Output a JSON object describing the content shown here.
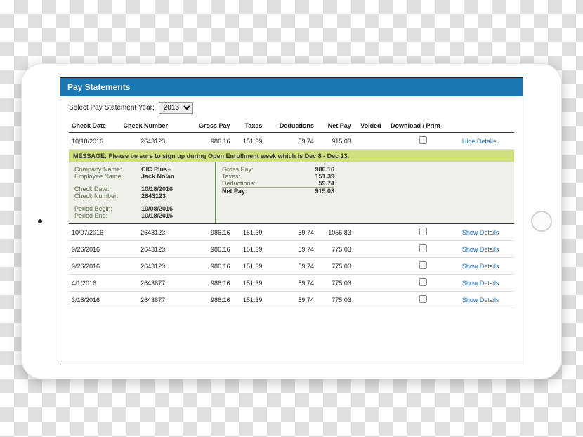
{
  "title": "Pay Statements",
  "year_row": {
    "label": "Select Pay Statement Year:",
    "selected": "2016"
  },
  "columns": [
    "Check Date",
    "Check Number",
    "Gross Pay",
    "Taxes",
    "Deductions",
    "Net Pay",
    "Voided",
    "Download / Print",
    ""
  ],
  "link_show": "Show Details",
  "link_hide": "Hide Details",
  "rows": [
    {
      "date": "10/18/2016",
      "num": "2643123",
      "gross": "986.16",
      "taxes": "151.39",
      "ded": "59.74",
      "net": "915.03",
      "expanded": true
    },
    {
      "date": "10/07/2016",
      "num": "2643123",
      "gross": "986.16",
      "taxes": "151.39",
      "ded": "59.74",
      "net": "1056.83",
      "expanded": false
    },
    {
      "date": "9/26/2016",
      "num": "2643123",
      "gross": "986.16",
      "taxes": "151.39",
      "ded": "59.74",
      "net": "775.03",
      "expanded": false
    },
    {
      "date": "9/26/2016",
      "num": "2643123",
      "gross": "986.16",
      "taxes": "151.39",
      "ded": "59.74",
      "net": "775.03",
      "expanded": false
    },
    {
      "date": "4/1/2016",
      "num": "2643877",
      "gross": "986.16",
      "taxes": "151.39",
      "ded": "59.74",
      "net": "775.03",
      "expanded": false
    },
    {
      "date": "3/18/2016",
      "num": "2643877",
      "gross": "986.16",
      "taxes": "151.39",
      "ded": "59.74",
      "net": "775.03",
      "expanded": false
    }
  ],
  "detail": {
    "message_label": "MESSAGE:",
    "message_text": "Please be sure to sign up during Open Enrollment week which is Dec 8 - Dec 13.",
    "company_label": "Company Name:",
    "company": "CIC Plus+",
    "employee_label": "Employee Name:",
    "employee": "Jack Nolan",
    "checkdate_label": "Check Date:",
    "checkdate": "10/18/2016",
    "checknum_label": "Check Number:",
    "checknum": "2643123",
    "period_begin_label": "Period Begin:",
    "period_begin": "10/08/2016",
    "period_end_label": "Period End:",
    "period_end": "10/18/2016",
    "gross_label": "Gross Pay:",
    "gross": "986.16",
    "taxes_label": "Taxes:",
    "taxes": "151.39",
    "ded_label": "Deductions:",
    "ded": "59.74",
    "net_label": "Net Pay:",
    "net": "915.03"
  },
  "colors": {
    "header_bg": "#1a78b3",
    "detail_bg": "#eef1e9",
    "msg_bg": "#cfe07e",
    "link": "#1a6fbf"
  }
}
